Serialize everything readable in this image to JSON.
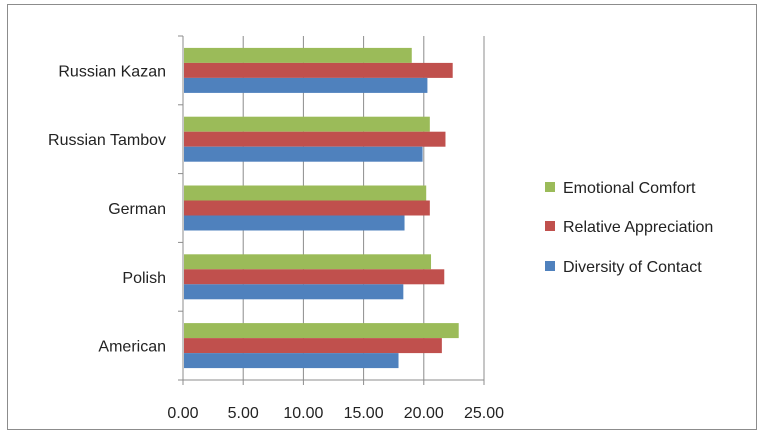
{
  "chart_data": {
    "type": "bar",
    "orientation": "horizontal",
    "categories": [
      "Russian Kazan",
      "Russian Tambov",
      "German",
      "Polish",
      "American"
    ],
    "series": [
      {
        "name": "Emotional Comfort",
        "color": "#9bbb59",
        "values": [
          19.0,
          20.5,
          20.2,
          20.6,
          22.9
        ]
      },
      {
        "name": "Relative Appreciation",
        "color": "#c0504d",
        "values": [
          22.4,
          21.8,
          20.5,
          21.7,
          21.5
        ]
      },
      {
        "name": "Diversity of Contact",
        "color": "#4f81bd",
        "values": [
          20.3,
          19.9,
          18.4,
          18.3,
          17.9
        ]
      }
    ],
    "x_ticks": [
      "0.00",
      "5.00",
      "10.00",
      "15.00",
      "20.00",
      "25.00"
    ],
    "xlim": [
      0,
      25
    ],
    "grid": "vertical major gridlines",
    "legend_position": "right"
  }
}
